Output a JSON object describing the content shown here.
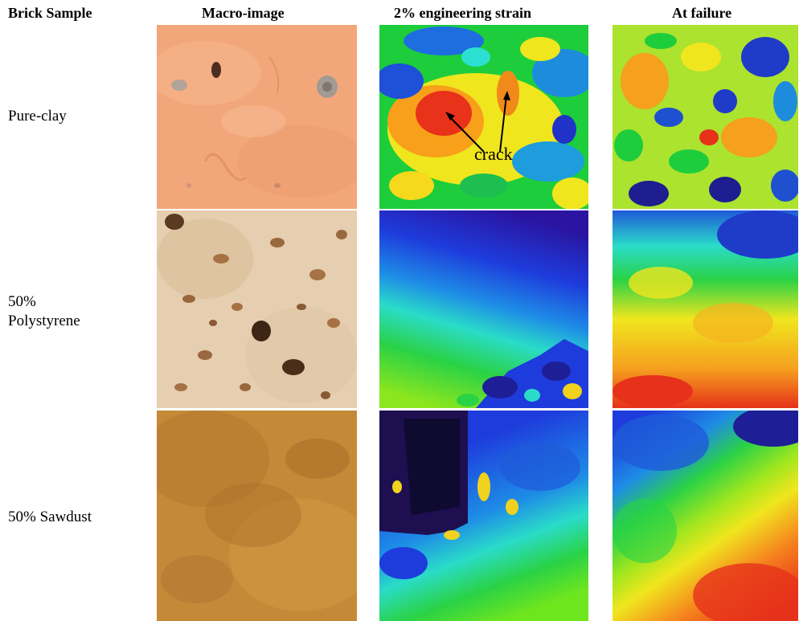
{
  "headers": {
    "sample": "Brick Sample",
    "macro": "Macro-image",
    "strain": "2% engineering strain",
    "failure": "At failure"
  },
  "rows": [
    {
      "label": "Pure-clay"
    },
    {
      "label": "50% Polystyrene"
    },
    {
      "label": "50% Sawdust"
    }
  ],
  "annotation": {
    "text": "crack"
  },
  "colors": {
    "pure_clay_macro": "#f2a77a",
    "polystyrene_macro": "#e6ceb0",
    "sawdust_macro": "#c58a38",
    "strain_low": "#1e0f5a",
    "strain_mid": "#1ec832",
    "strain_high": "#e61e0a"
  }
}
